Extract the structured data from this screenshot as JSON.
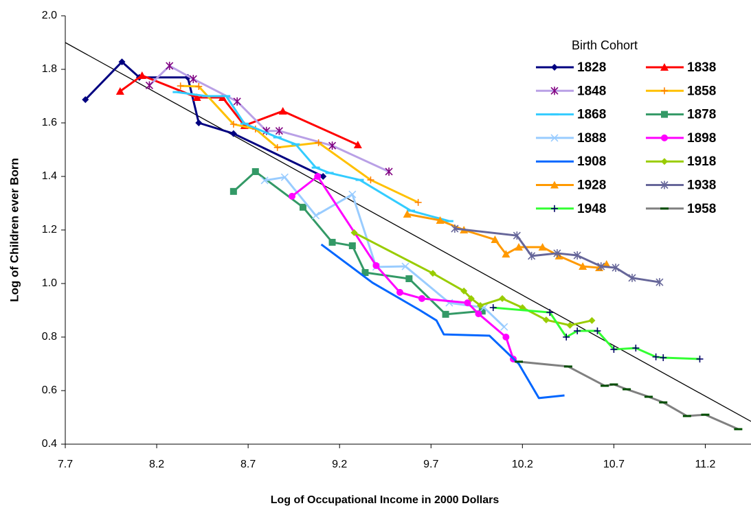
{
  "chart_data": {
    "type": "line",
    "xlabel": "Log of Occupational Income in 2000 Dollars",
    "ylabel": "Log of Children ever Born",
    "legend_title": "Birth Cohort",
    "legend": "upper right",
    "xlim": [
      7.7,
      11.45
    ],
    "ylim": [
      0.4,
      2.0
    ],
    "xticks": [
      7.7,
      8.2,
      8.7,
      9.2,
      9.7,
      10.2,
      10.7,
      11.2
    ],
    "yticks": [
      0.4,
      0.6,
      0.8,
      {
        "value": 1.0,
        "label": "1.0"
      },
      1.2,
      1.4,
      1.6,
      1.8,
      {
        "value": 2.0,
        "label": "2.0"
      }
    ],
    "trend_line": {
      "color": "#000000",
      "x": [
        7.7,
        11.45
      ],
      "y": [
        1.9,
        0.485
      ]
    },
    "series": [
      {
        "name": "1828",
        "color": "#000080",
        "marker": "diamond",
        "marker_color": "#000080",
        "x": [
          7.81,
          8.01,
          8.105,
          8.37,
          8.43,
          8.62,
          9.11
        ],
        "values": [
          1.687,
          1.828,
          1.77,
          1.77,
          1.6,
          1.56,
          1.4
        ]
      },
      {
        "name": "1838",
        "color": "#ff0000",
        "marker": "triangle",
        "marker_color": "#ff0000",
        "x": [
          8.0,
          8.12,
          8.42,
          8.56,
          8.68,
          8.89,
          9.3
        ],
        "values": [
          1.718,
          1.777,
          1.695,
          1.695,
          1.59,
          1.644,
          1.518
        ]
      },
      {
        "name": "1848",
        "color": "#b9a0e6",
        "marker": "star",
        "marker_color": "#800080",
        "x": [
          8.16,
          8.27,
          8.4,
          8.64,
          8.8,
          8.87,
          9.16,
          9.47
        ],
        "values": [
          1.74,
          1.813,
          1.764,
          1.68,
          1.57,
          1.57,
          1.515,
          1.418
        ]
      },
      {
        "name": "1858",
        "color": "#ffc000",
        "marker": "plus",
        "marker_color": "#ff8000",
        "x": [
          8.33,
          8.43,
          8.62,
          8.74,
          8.86,
          9.085,
          9.37,
          9.63
        ],
        "values": [
          1.738,
          1.736,
          1.595,
          1.577,
          1.508,
          1.526,
          1.387,
          1.303
        ]
      },
      {
        "name": "1868",
        "color": "#33ccff",
        "marker": "dash",
        "marker_color": "#33ccff",
        "x": [
          8.31,
          8.47,
          8.58,
          8.68,
          8.86,
          8.96,
          9.07,
          9.145,
          9.31,
          9.59,
          9.8
        ],
        "values": [
          1.715,
          1.7,
          1.7,
          1.597,
          1.546,
          1.52,
          1.433,
          1.413,
          1.387,
          1.272,
          1.233
        ]
      },
      {
        "name": "1878",
        "color": "#339966",
        "marker": "square",
        "marker_color": "#339966",
        "x": [
          8.62,
          8.74,
          9.0,
          9.16,
          9.27,
          9.34,
          9.58,
          9.78,
          9.98
        ],
        "values": [
          1.344,
          1.418,
          1.285,
          1.154,
          1.141,
          1.041,
          1.018,
          0.885,
          0.897
        ]
      },
      {
        "name": "1888",
        "color": "#99ccff",
        "marker": "x",
        "marker_color": "#99ccff",
        "x": [
          8.79,
          8.9,
          9.07,
          9.27,
          9.4,
          9.56,
          9.8,
          9.99,
          10.1
        ],
        "values": [
          1.385,
          1.397,
          1.254,
          1.333,
          1.062,
          1.064,
          0.928,
          0.91,
          0.838
        ]
      },
      {
        "name": "1898",
        "color": "#ff00ff",
        "marker": "circle",
        "marker_color": "#ff00ff",
        "x": [
          8.94,
          9.08,
          9.4,
          9.53,
          9.65,
          9.9,
          9.96,
          10.11,
          10.15
        ],
        "values": [
          1.326,
          1.4,
          1.067,
          0.967,
          0.944,
          0.928,
          0.887,
          0.8,
          0.718
        ]
      },
      {
        "name": "1908",
        "color": "#0066ff",
        "marker": "none",
        "marker_color": "#0066ff",
        "x": [
          9.1,
          9.38,
          9.64,
          9.73,
          9.77,
          10.02,
          10.18,
          10.29,
          10.43
        ],
        "values": [
          1.146,
          1.003,
          0.9,
          0.862,
          0.81,
          0.805,
          0.7,
          0.572,
          0.582
        ]
      },
      {
        "name": "1918",
        "color": "#99cc00",
        "marker": "diamond",
        "marker_color": "#99cc00",
        "x": [
          9.28,
          9.71,
          9.88,
          9.92,
          9.97,
          10.09,
          10.2,
          10.33,
          10.46,
          10.58
        ],
        "values": [
          1.19,
          1.038,
          0.972,
          0.944,
          0.918,
          0.944,
          0.91,
          0.864,
          0.844,
          0.862
        ]
      },
      {
        "name": "1928",
        "color": "#ff9900",
        "marker": "triangle",
        "marker_color": "#ff9900",
        "x": [
          9.57,
          9.75,
          9.88,
          10.05,
          10.11,
          10.18,
          10.31,
          10.4,
          10.53,
          10.62,
          10.66
        ],
        "values": [
          1.259,
          1.236,
          1.2,
          1.164,
          1.11,
          1.136,
          1.136,
          1.103,
          1.064,
          1.059,
          1.072
        ]
      },
      {
        "name": "1938",
        "color": "#666699",
        "marker": "star",
        "marker_color": "#666699",
        "x": [
          9.83,
          10.17,
          10.25,
          10.39,
          10.5,
          10.63,
          10.71,
          10.8,
          10.95
        ],
        "values": [
          1.205,
          1.179,
          1.103,
          1.113,
          1.105,
          1.064,
          1.059,
          1.021,
          1.005
        ]
      },
      {
        "name": "1948",
        "color": "#33ff33",
        "marker": "plus",
        "marker_color": "#000066",
        "x": [
          10.04,
          10.35,
          10.44,
          10.5,
          10.61,
          10.7,
          10.82,
          10.93,
          10.97,
          11.17
        ],
        "values": [
          0.91,
          0.892,
          0.8,
          0.823,
          0.823,
          0.754,
          0.759,
          0.726,
          0.723,
          0.718
        ]
      },
      {
        "name": "1958",
        "color": "#808080",
        "marker": "dash",
        "marker_color": "#004d00",
        "x": [
          10.18,
          10.45,
          10.65,
          10.7,
          10.77,
          10.89,
          10.97,
          11.1,
          11.2,
          11.38
        ],
        "values": [
          0.708,
          0.69,
          0.618,
          0.623,
          0.605,
          0.577,
          0.556,
          0.505,
          0.51,
          0.456
        ]
      }
    ]
  }
}
